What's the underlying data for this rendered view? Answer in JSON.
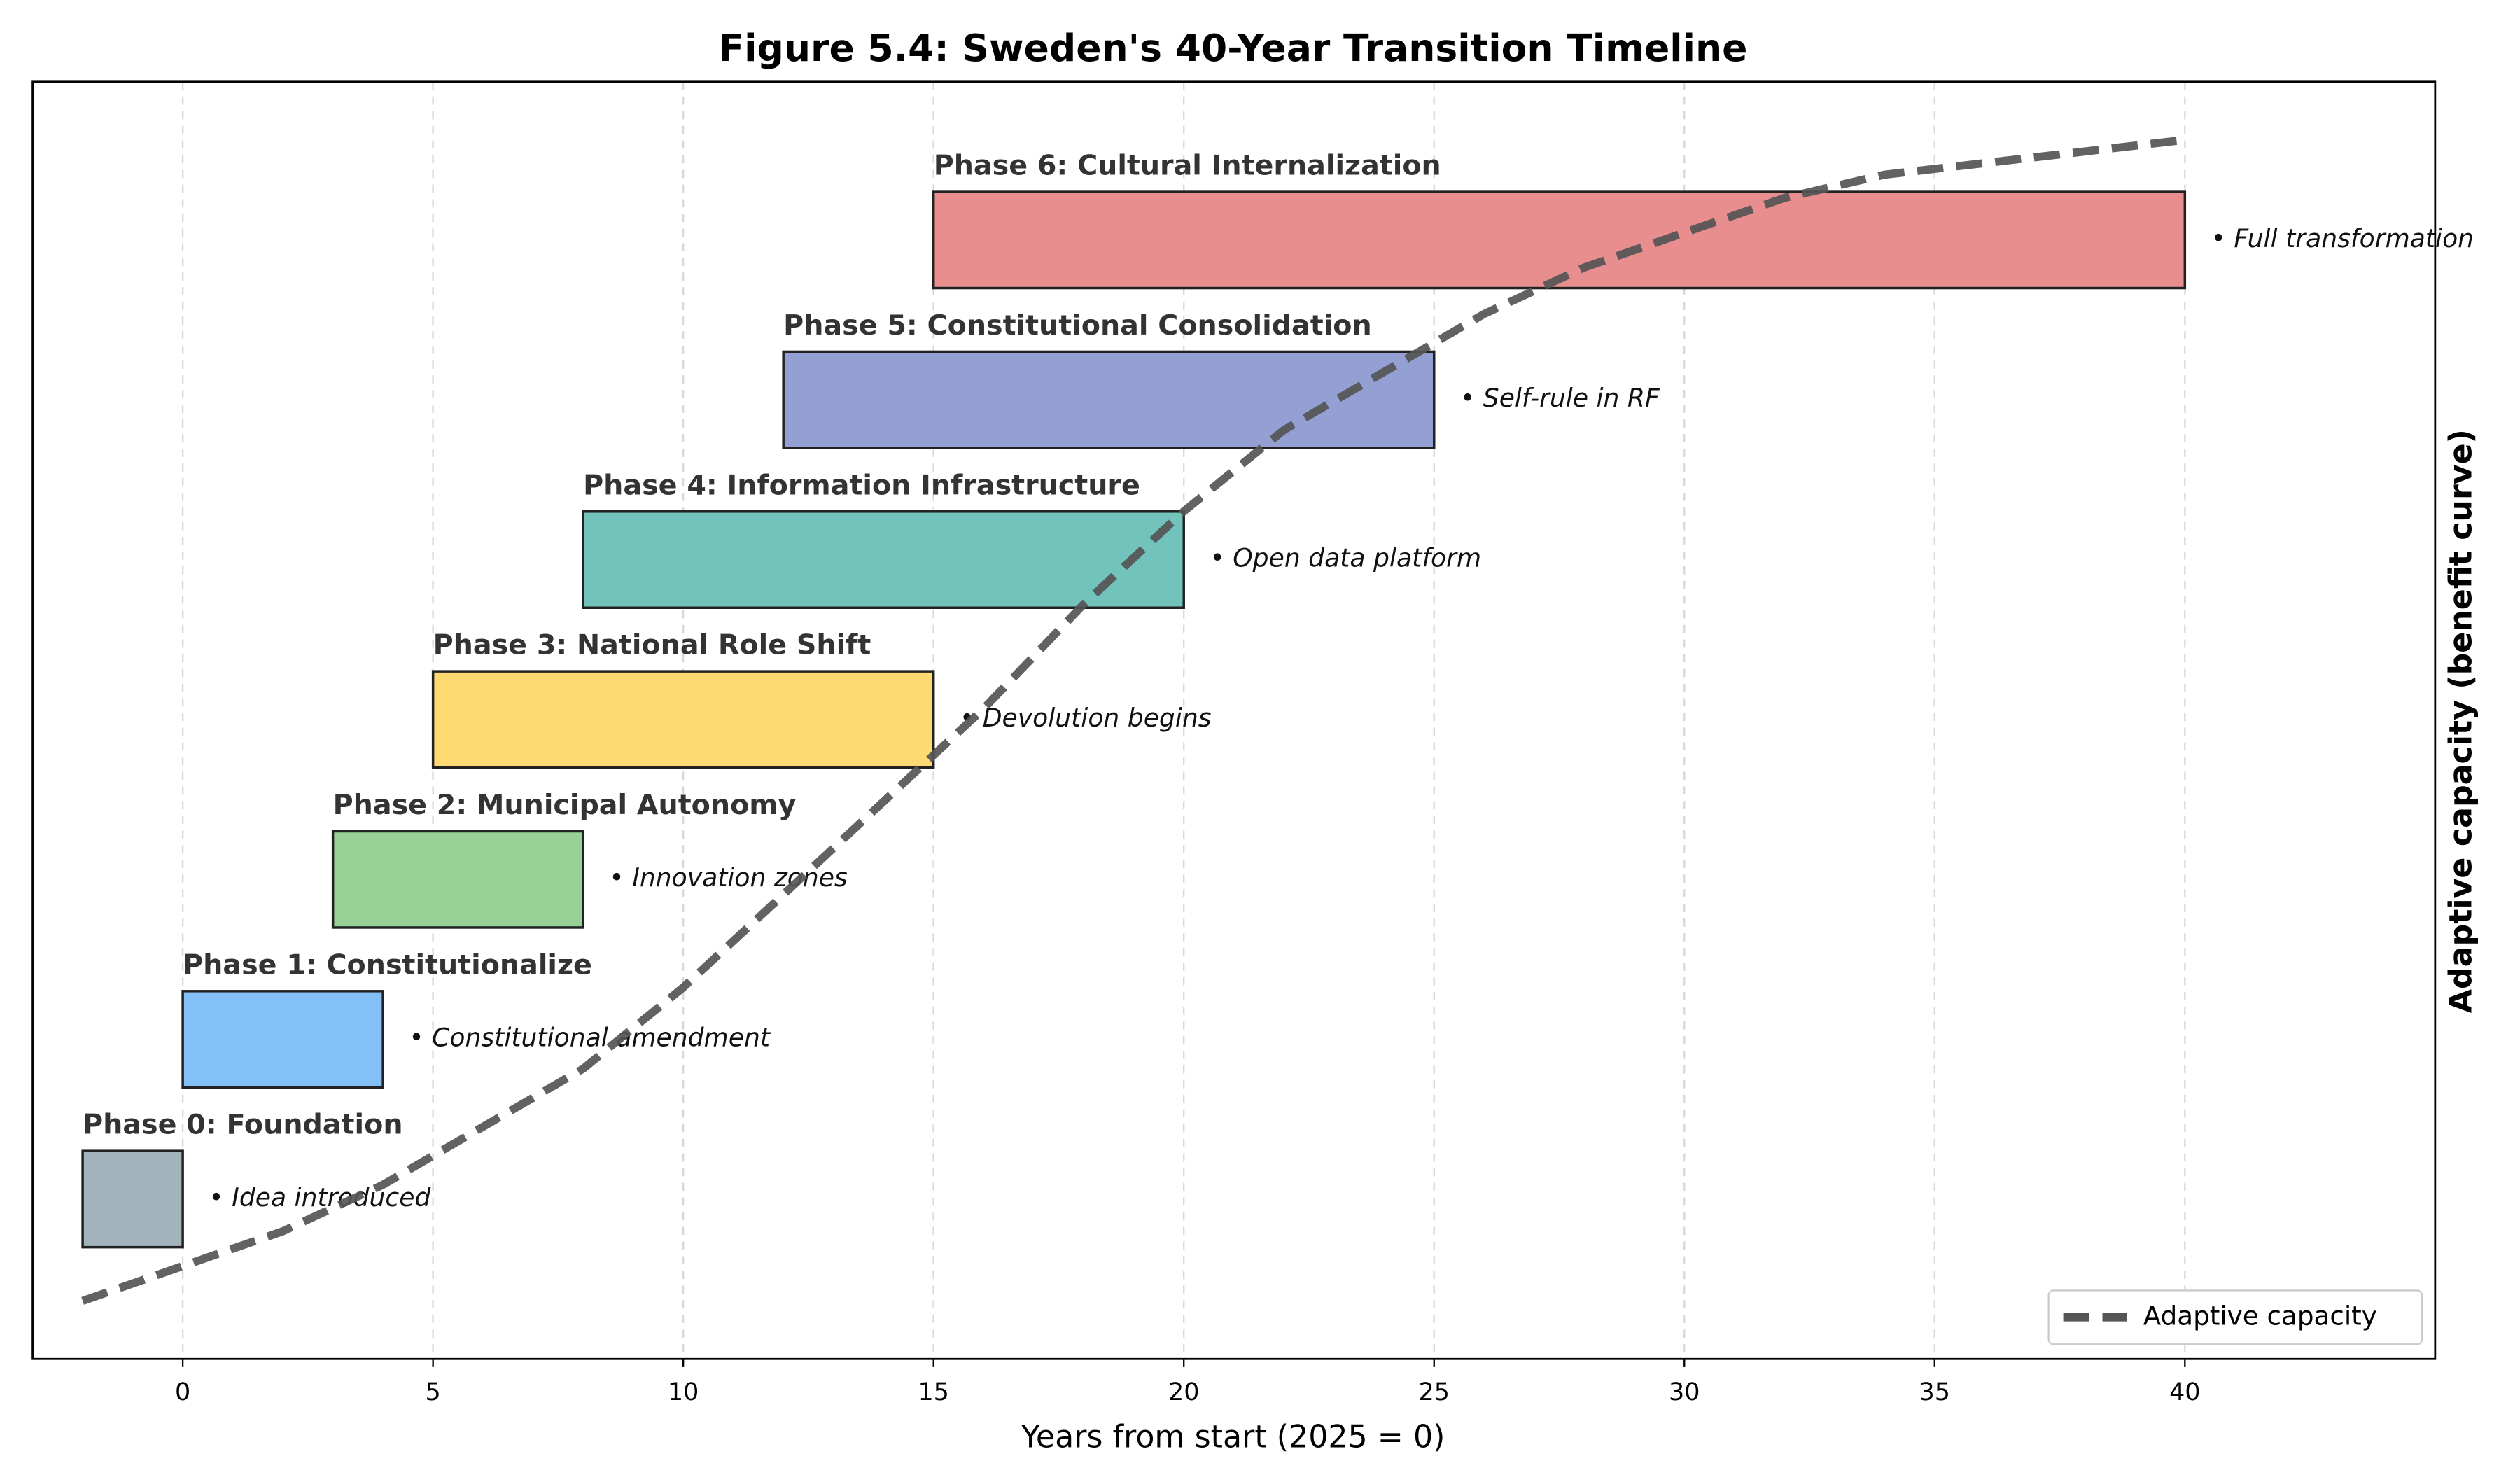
{
  "chart_data": {
    "type": "gantt",
    "title": "Figure 5.4: Sweden's 40-Year Transition Timeline",
    "xlabel": "Years from start (2025 = 0)",
    "y2label": "Adaptive capacity (benefit curve)",
    "xlim": [
      -3,
      45
    ],
    "xticks": [
      0,
      5,
      10,
      15,
      20,
      25,
      30,
      35,
      40
    ],
    "grid": true,
    "legend": "lower right",
    "tasks": [
      {
        "name": "Phase 0: Foundation",
        "start": -2,
        "end": 0,
        "note": "• Idea introduced",
        "color": "#a3b3bc"
      },
      {
        "name": "Phase 1: Constitutionalize",
        "start": 0,
        "end": 4,
        "note": "• Constitutional amendment",
        "color": "#82c0f7"
      },
      {
        "name": "Phase 2: Municipal Autonomy",
        "start": 3,
        "end": 8,
        "note": "• Innovation zones",
        "color": "#97d195"
      },
      {
        "name": "Phase 3: National Role Shift",
        "start": 5,
        "end": 15,
        "note": "• Devolution begins",
        "color": "#ffda73"
      },
      {
        "name": "Phase 4: Information Infrastructure",
        "start": 8,
        "end": 20,
        "note": "• Open data platform",
        "color": "#72c3bb"
      },
      {
        "name": "Phase 5: Constitutional Consolidation",
        "start": 12,
        "end": 25,
        "note": "• Self-rule in RF",
        "color": "#949fd4"
      },
      {
        "name": "Phase 6: Cultural Internalization",
        "start": 15,
        "end": 40,
        "note": "• Full transformation",
        "color": "#e98e8e"
      }
    ],
    "y2lim": [
      -0.05,
      1.05
    ],
    "series": [
      {
        "name": "Adaptive capacity",
        "color": "#555555",
        "axis": "y2",
        "x": [
          -2,
          0,
          2,
          4,
          6,
          8,
          10,
          12,
          14,
          16,
          18,
          20,
          22,
          24,
          26,
          28,
          30,
          32,
          34,
          36,
          38,
          40
        ],
        "values": [
          0,
          0.03,
          0.06,
          0.1,
          0.15,
          0.2,
          0.27,
          0.35,
          0.43,
          0.51,
          0.6,
          0.68,
          0.75,
          0.8,
          0.85,
          0.89,
          0.92,
          0.95,
          0.97,
          0.98,
          0.99,
          1.0
        ]
      }
    ]
  }
}
